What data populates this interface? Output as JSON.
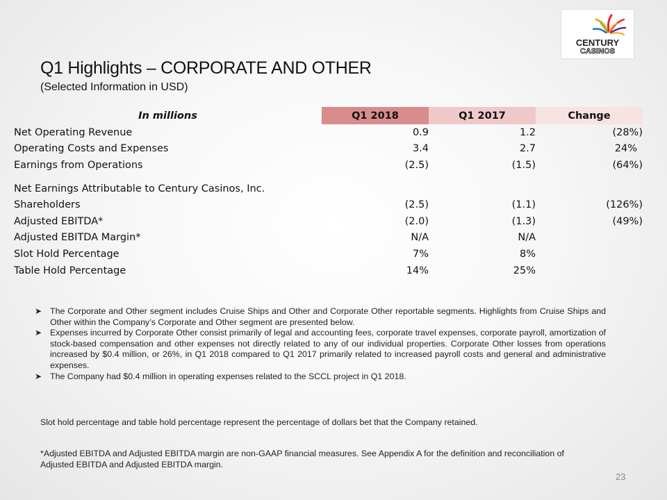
{
  "logo": {
    "line1": "CENTURY",
    "line2": "CASINOS"
  },
  "slide": {
    "title": "Q1 Highlights – CORPORATE AND OTHER",
    "subtitle": "(Selected Information in USD)",
    "page_number": "23"
  },
  "table": {
    "units_label": "In millions",
    "headers": [
      "Q1 2018",
      "Q1 2017",
      "Change"
    ],
    "header_colors": [
      "#d98c8c",
      "#efc9c9",
      "#f8e3e3"
    ],
    "rows": [
      {
        "label": "Net Operating Revenue",
        "q1_2018": "0.9",
        "q1_2017": "1.2",
        "change": "(28%)"
      },
      {
        "label": "Operating Costs and Expenses",
        "q1_2018": "3.4",
        "q1_2017": "2.7",
        "change": "24%"
      },
      {
        "label": "Earnings from Operations",
        "q1_2018": "(2.5)",
        "q1_2017": "(1.5)",
        "change": "(64%)"
      },
      {
        "label": "Net Earnings Attributable to Century Casinos, Inc.",
        "q1_2018": "",
        "q1_2017": "",
        "change": ""
      },
      {
        "label": "Shareholders",
        "q1_2018": "(2.5)",
        "q1_2017": "(1.1)",
        "change": "(126%)"
      },
      {
        "label": "Adjusted EBITDA*",
        "q1_2018": "(2.0)",
        "q1_2017": "(1.3)",
        "change": "(49%)"
      },
      {
        "label": "Adjusted EBITDA Margin*",
        "q1_2018": "N/A",
        "q1_2017": "N/A",
        "change": ""
      },
      {
        "label": "Slot Hold Percentage",
        "q1_2018": "7%",
        "q1_2017": "8%",
        "change": ""
      },
      {
        "label": "Table Hold Percentage",
        "q1_2018": "14%",
        "q1_2017": "25%",
        "change": ""
      }
    ]
  },
  "bullets": [
    "The Corporate and Other segment includes Cruise Ships and Other and Corporate Other reportable segments. Highlights from Cruise Ships and Other within the Company’s Corporate and Other segment are presented below.",
    "Expenses incurred by Corporate Other consist primarily of legal and accounting fees, corporate travel expenses, corporate payroll, amortization of stock-based compensation and other expenses not directly related to any of our individual properties. Corporate Other losses from operations increased by $0.4 million, or 26%, in Q1 2018 compared to Q1 2017 primarily related to increased payroll costs and general and administrative expenses.",
    "The Company had $0.4 million in operating expenses related to the SCCL project in Q1 2018."
  ],
  "notes": {
    "hold_note": "Slot hold percentage and table hold percentage represent the percentage of dollars bet that the Company retained.",
    "ebitda_note": "*Adjusted EBITDA and Adjusted EBITDA margin are non-GAAP financial measures. See Appendix A for the definition and reconciliation of Adjusted EBITDA and Adjusted EBITDA margin."
  }
}
